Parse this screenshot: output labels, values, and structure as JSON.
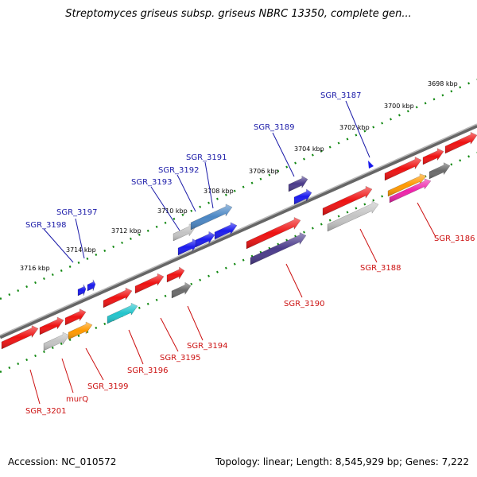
{
  "title": "Streptomyces griseus subsp. griseus NBRC 13350, complete gen...",
  "footer": {
    "accession": "Accession: NC_010572",
    "topology": "Topology: linear; Length: 8,545,929 bp; Genes: 7,222"
  },
  "colors": {
    "red": "#ee1111",
    "blue": "#1a1aee",
    "indigo": "#4a3a8a",
    "steel": "#4a86c4",
    "light_gray": "#c4c4c4",
    "dark_gray": "#6a6a6a",
    "orange": "#ff9900",
    "magenta": "#ee22aa",
    "cyan": "#22c4cc",
    "tick_green": "#118811"
  },
  "kbp_labels": [
    "3698 kbp",
    "3700 kbp",
    "3702 kbp",
    "3704 kbp",
    "3706 kbp",
    "3708 kbp",
    "3710 kbp",
    "3712 kbp",
    "3714 kbp",
    "3716 kbp"
  ],
  "top_gene_labels": [
    "SGR_3187",
    "SGR_3189",
    "SGR_3191",
    "SGR_3192",
    "SGR_3193",
    "SGR_3197",
    "SGR_3198"
  ],
  "bottom_gene_labels": [
    "SGR_3186",
    "SGR_3188",
    "SGR_3190",
    "SGR_3194",
    "SGR_3195",
    "SGR_3196",
    "SGR_3199",
    "murQ",
    "SGR_3201"
  ]
}
